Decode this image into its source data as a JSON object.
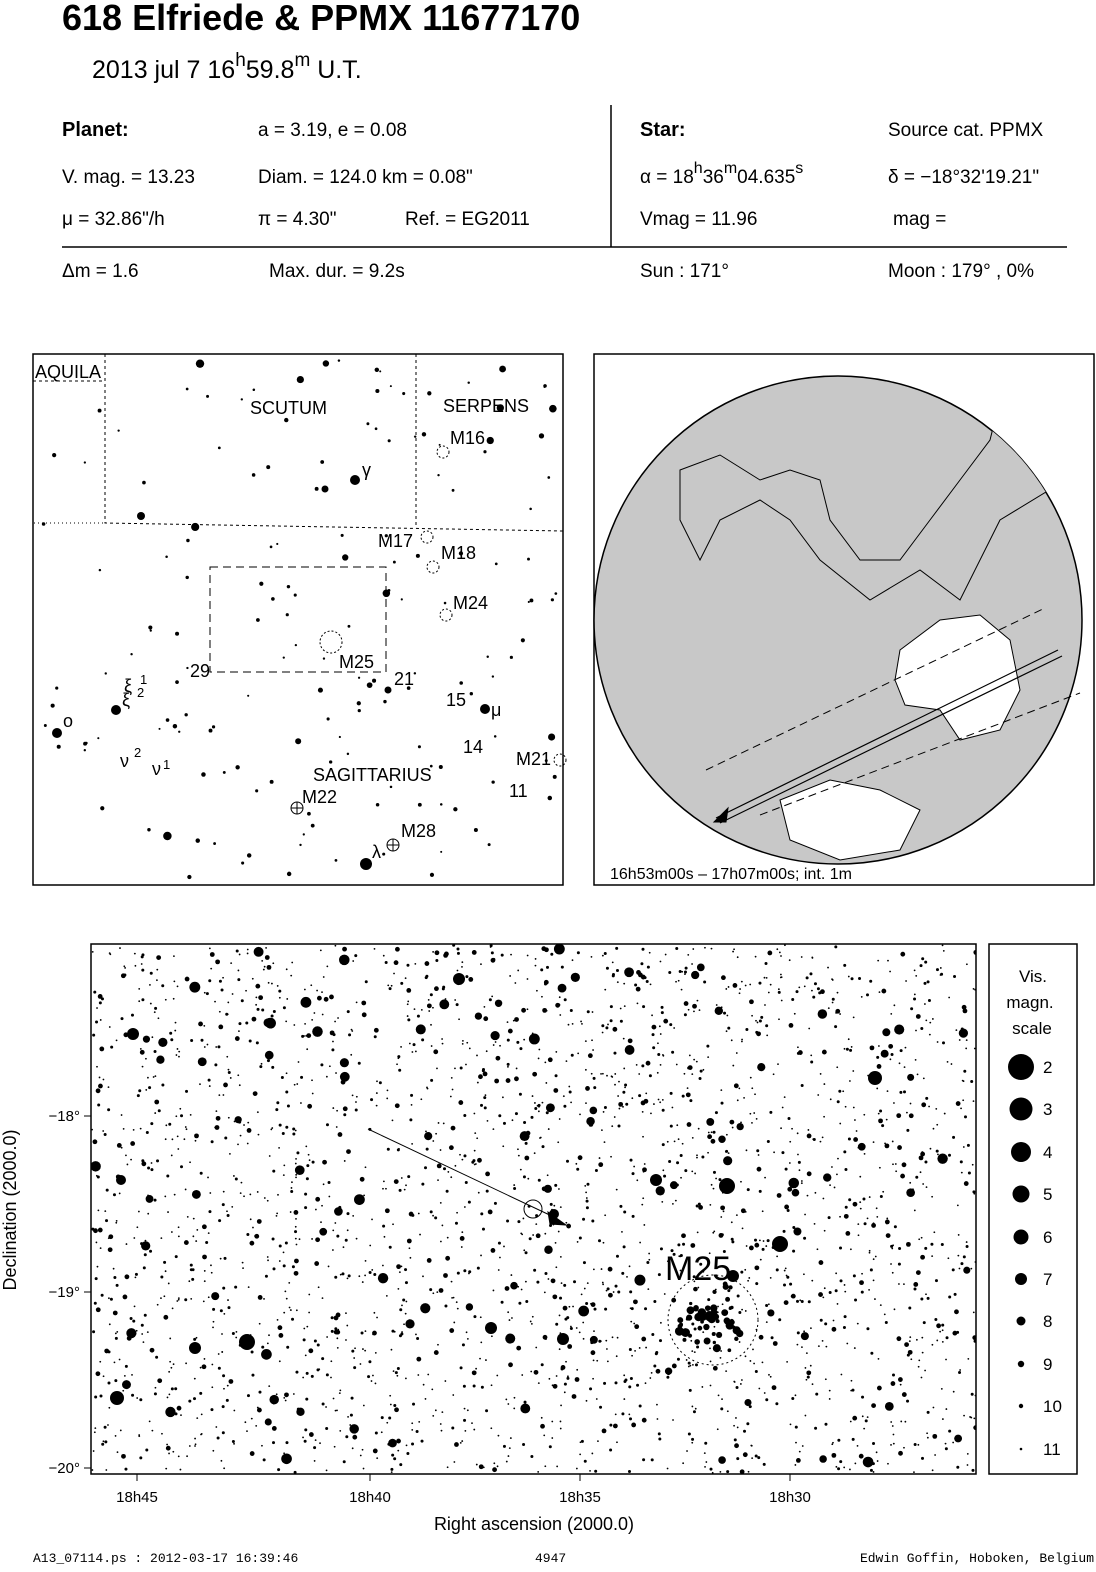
{
  "header": {
    "title": "618 Elfriede  &  PPMX 11677170",
    "date": "2013 jul  7  16",
    "date_h": "h",
    "date_min": "59.8",
    "date_m": "m",
    "date_ut": " U.T."
  },
  "planet": {
    "label": "Planet:",
    "orbit": "a = 3.19, e = 0.08",
    "vmag": "V. mag. = 13.23",
    "diam": "Diam. = 124.0 km = 0.08\"",
    "mu": "μ =  32.86\"/h",
    "pi": "π =  4.30\"",
    "ref": "Ref. = EG2011"
  },
  "star": {
    "label": "Star:",
    "source": "Source cat.  PPMX",
    "ra": [
      "α = 18",
      "h",
      "36",
      "m",
      "04.635",
      "s"
    ],
    "dec": "δ = −18°32'19.21\"",
    "vmag": "Vmag = 11.96",
    "mag": "mag ="
  },
  "event": {
    "dm": "Δm = 1.6",
    "maxdur": "Max. dur. = 9.2s",
    "sun": "Sun : 171°",
    "moon": "Moon : 179° ,  0%"
  },
  "finder": {
    "labels": [
      "AQUILA",
      "SCUTUM",
      "SERPENS",
      "M16",
      "γ",
      "M17",
      "M18",
      "M24",
      "M25",
      "29",
      "21",
      "15",
      "μ",
      "14",
      "M21",
      "11",
      "SAGITTARIUS",
      "M22",
      "M28",
      "λ",
      "o",
      "ξ",
      "1",
      "ξ",
      "2",
      "ν",
      "2",
      "ν",
      "1"
    ]
  },
  "globe": {
    "caption": "16h53m00s – 17h07m00s; int.  1m"
  },
  "starfield": {
    "object": "M25",
    "yticks": [
      "−18°",
      "−19°",
      "−20°"
    ],
    "xticks": [
      "18h45",
      "18h40",
      "18h35",
      "18h30"
    ],
    "xlabel": "Right ascension (2000.0)",
    "ylabel": "Declination (2000.0)"
  },
  "scale": {
    "title": [
      "Vis.",
      "magn.",
      "scale"
    ],
    "mags": [
      2,
      3,
      4,
      5,
      6,
      7,
      8,
      9,
      10,
      11
    ]
  },
  "footer": {
    "file": "A13_07114.ps : 2012-03-17 16:39:46",
    "num": "4947",
    "author": "Edwin Goffin, Hoboken, Belgium"
  }
}
